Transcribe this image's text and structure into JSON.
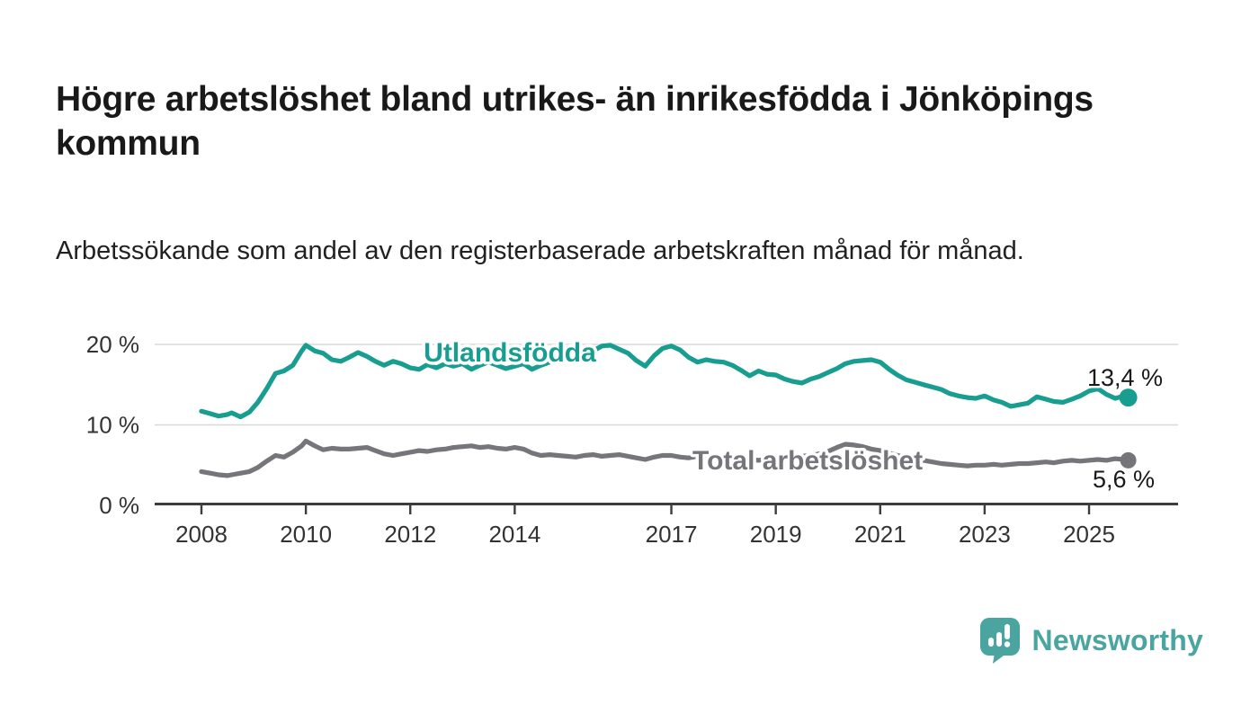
{
  "header": {
    "title": "Högre arbetslöshet bland utrikes- än inrikesfödda i Jönköpings kommun",
    "subtitle": "Arbetssökande som andel av den registerbaserade arbetskraften månad för månad."
  },
  "footer": {
    "brand": "Newsworthy",
    "brand_color": "#4aa5a0"
  },
  "chart_data": {
    "type": "line",
    "title": "Högre arbetslöshet bland utrikes- än inrikesfödda i Jönköpings kommun",
    "subtitle": "Arbetssökande som andel av den registerbaserade arbetskraften månad för månad.",
    "grid": "horizontal-only",
    "x_axis": {
      "tick_values": [
        2008,
        2010,
        2012,
        2014,
        2017,
        2019,
        2021,
        2023,
        2025
      ],
      "tick_labels": [
        "2008",
        "2010",
        "2012",
        "2014",
        "2017",
        "2019",
        "2021",
        "2023",
        "2025"
      ],
      "range": [
        2007.1,
        2026.7
      ]
    },
    "y_axis": {
      "unit": "%",
      "tick_values": [
        0,
        10,
        20
      ],
      "tick_labels": [
        "0 %",
        "10 %",
        "20 %"
      ],
      "range": [
        0,
        22.3
      ]
    },
    "series": [
      {
        "name": "Total arbetslöshet",
        "color": "#76757a",
        "end_value_label": "5,6 %",
        "end_value": 5.6,
        "x": [
          2008.0,
          2008.17,
          2008.33,
          2008.5,
          2008.58,
          2008.75,
          2008.92,
          2009.08,
          2009.25,
          2009.42,
          2009.58,
          2009.75,
          2009.92,
          2010.0,
          2010.17,
          2010.33,
          2010.5,
          2010.67,
          2010.83,
          2011.0,
          2011.17,
          2011.33,
          2011.5,
          2011.67,
          2011.83,
          2012.0,
          2012.17,
          2012.33,
          2012.5,
          2012.67,
          2012.83,
          2013.0,
          2013.17,
          2013.33,
          2013.5,
          2013.67,
          2013.83,
          2014.0,
          2014.17,
          2014.33,
          2014.5,
          2014.67,
          2014.83,
          2015.0,
          2015.17,
          2015.33,
          2015.5,
          2015.67,
          2015.83,
          2016.0,
          2016.17,
          2016.33,
          2016.5,
          2016.67,
          2016.83,
          2017.0,
          2017.17,
          2017.33,
          2017.5,
          2017.67,
          2017.83,
          2018.0,
          2018.17,
          2018.33,
          2018.5,
          2018.67,
          2018.83,
          2019.0,
          2019.17,
          2019.33,
          2019.5,
          2019.67,
          2019.83,
          2020.0,
          2020.17,
          2020.33,
          2020.5,
          2020.67,
          2020.83,
          2021.0,
          2021.17,
          2021.33,
          2021.5,
          2021.67,
          2021.83,
          2022.0,
          2022.17,
          2022.33,
          2022.5,
          2022.67,
          2022.83,
          2023.0,
          2023.17,
          2023.33,
          2023.5,
          2023.67,
          2023.83,
          2024.0,
          2024.17,
          2024.33,
          2024.5,
          2024.67,
          2024.83,
          2025.0,
          2025.17,
          2025.33,
          2025.5,
          2025.67,
          2025.75
        ],
        "values": [
          4.2,
          4.0,
          3.8,
          3.7,
          3.8,
          4.0,
          4.2,
          4.7,
          5.5,
          6.2,
          6.0,
          6.6,
          7.4,
          8.0,
          7.4,
          6.9,
          7.1,
          7.0,
          7.0,
          7.1,
          7.2,
          6.8,
          6.4,
          6.2,
          6.4,
          6.6,
          6.8,
          6.7,
          6.9,
          7.0,
          7.2,
          7.3,
          7.4,
          7.2,
          7.3,
          7.1,
          7.0,
          7.2,
          7.0,
          6.5,
          6.2,
          6.3,
          6.2,
          6.1,
          6.0,
          6.2,
          6.3,
          6.1,
          6.2,
          6.3,
          6.1,
          5.9,
          5.7,
          6.0,
          6.2,
          6.2,
          6.0,
          5.9,
          6.1,
          6.2,
          6.1,
          6.0,
          5.9,
          5.8,
          5.7,
          5.6,
          5.7,
          5.8,
          5.9,
          6.0,
          6.1,
          6.2,
          6.4,
          6.7,
          7.2,
          7.6,
          7.5,
          7.3,
          7.0,
          6.8,
          6.5,
          6.2,
          6.0,
          5.8,
          5.6,
          5.4,
          5.2,
          5.1,
          5.0,
          4.9,
          5.0,
          5.0,
          5.1,
          5.0,
          5.1,
          5.2,
          5.2,
          5.3,
          5.4,
          5.3,
          5.5,
          5.6,
          5.5,
          5.6,
          5.7,
          5.6,
          5.8,
          5.7,
          5.6
        ]
      },
      {
        "name": "Utlandsfödda",
        "color": "#189e90",
        "end_value_label": "13,4 %",
        "end_value": 13.4,
        "x": [
          2008.0,
          2008.17,
          2008.33,
          2008.5,
          2008.58,
          2008.75,
          2008.92,
          2009.08,
          2009.25,
          2009.42,
          2009.58,
          2009.75,
          2009.92,
          2010.0,
          2010.17,
          2010.33,
          2010.5,
          2010.67,
          2010.83,
          2011.0,
          2011.17,
          2011.33,
          2011.5,
          2011.67,
          2011.83,
          2012.0,
          2012.17,
          2012.33,
          2012.5,
          2012.67,
          2012.83,
          2013.0,
          2013.17,
          2013.33,
          2013.5,
          2013.67,
          2013.83,
          2014.0,
          2014.17,
          2014.33,
          2014.5,
          2014.67,
          2014.83,
          2015.0,
          2015.17,
          2015.33,
          2015.5,
          2015.67,
          2015.83,
          2016.0,
          2016.17,
          2016.33,
          2016.5,
          2016.67,
          2016.83,
          2017.0,
          2017.17,
          2017.33,
          2017.5,
          2017.67,
          2017.83,
          2018.0,
          2018.17,
          2018.33,
          2018.5,
          2018.67,
          2018.83,
          2019.0,
          2019.17,
          2019.33,
          2019.5,
          2019.67,
          2019.83,
          2020.0,
          2020.17,
          2020.33,
          2020.5,
          2020.67,
          2020.83,
          2021.0,
          2021.17,
          2021.33,
          2021.5,
          2021.67,
          2021.83,
          2022.0,
          2022.17,
          2022.33,
          2022.5,
          2022.67,
          2022.83,
          2023.0,
          2023.17,
          2023.33,
          2023.5,
          2023.67,
          2023.83,
          2024.0,
          2024.17,
          2024.33,
          2024.5,
          2024.67,
          2024.83,
          2025.0,
          2025.17,
          2025.33,
          2025.5,
          2025.67,
          2025.75
        ],
        "values": [
          11.7,
          11.4,
          11.1,
          11.3,
          11.5,
          11.0,
          11.6,
          12.8,
          14.5,
          16.4,
          16.7,
          17.4,
          19.2,
          19.9,
          19.2,
          18.9,
          18.1,
          17.9,
          18.4,
          19.0,
          18.5,
          17.9,
          17.4,
          17.9,
          17.6,
          17.1,
          16.9,
          17.5,
          17.1,
          17.6,
          17.3,
          17.6,
          16.9,
          17.4,
          17.8,
          17.4,
          17.0,
          17.3,
          17.6,
          16.9,
          17.4,
          17.8,
          18.1,
          18.0,
          18.3,
          18.7,
          19.2,
          19.8,
          19.9,
          19.4,
          18.9,
          18.0,
          17.3,
          18.6,
          19.5,
          19.8,
          19.3,
          18.4,
          17.8,
          18.1,
          17.9,
          17.8,
          17.4,
          16.8,
          16.1,
          16.7,
          16.3,
          16.2,
          15.7,
          15.4,
          15.2,
          15.7,
          16.0,
          16.5,
          17.0,
          17.6,
          17.9,
          18.0,
          18.1,
          17.8,
          16.9,
          16.2,
          15.6,
          15.3,
          15.0,
          14.7,
          14.4,
          13.9,
          13.6,
          13.4,
          13.3,
          13.6,
          13.1,
          12.8,
          12.3,
          12.5,
          12.7,
          13.5,
          13.2,
          12.9,
          12.8,
          13.2,
          13.6,
          14.2,
          14.5,
          13.8,
          13.3,
          13.6,
          13.4
        ]
      }
    ],
    "annotations": {
      "series_label_teal": "Utlandsfödda",
      "series_label_gray": "Total arbetslöshet",
      "end_label_teal": "13,4 %",
      "end_label_gray": "5,6 %"
    }
  }
}
